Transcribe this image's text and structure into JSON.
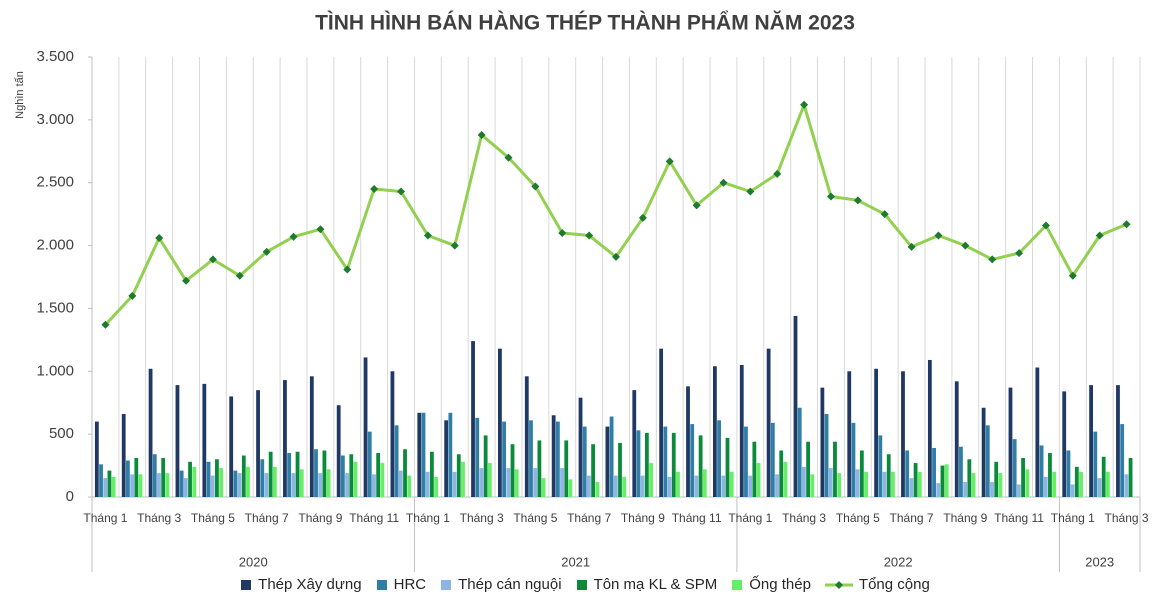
{
  "chart_data": {
    "type": "bar",
    "title": "TÌNH HÌNH BÁN HÀNG THÉP THÀNH PHẨM NĂM 2023",
    "y_label": "Nghìn tấn",
    "groups": [
      {
        "label": "2020",
        "categories": [
          "Tháng 1",
          null,
          "Tháng 3",
          null,
          "Tháng 5",
          null,
          "Tháng 7",
          null,
          "Tháng 9",
          null,
          "Tháng 11",
          null
        ]
      },
      {
        "label": "2021",
        "categories": [
          "Tháng 1",
          null,
          "Tháng 3",
          null,
          "Tháng 5",
          null,
          "Tháng 7",
          null,
          "Tháng 9",
          null,
          "Tháng 11",
          null
        ]
      },
      {
        "label": "2022",
        "categories": [
          "Tháng 1",
          null,
          "Tháng 3",
          null,
          "Tháng 5",
          null,
          "Tháng 7",
          null,
          "Tháng 9",
          null,
          "Tháng 11",
          null
        ]
      },
      {
        "label": "2023",
        "categories": [
          "Tháng 1",
          null,
          "Tháng 3"
        ]
      }
    ],
    "series": [
      {
        "name": "Thép Xây dựng",
        "color": "#1f3864",
        "values": [
          600,
          660,
          1020,
          890,
          900,
          800,
          850,
          930,
          960,
          730,
          1110,
          1000,
          670,
          610,
          1240,
          1180,
          960,
          650,
          790,
          560,
          850,
          1180,
          880,
          1040,
          1050,
          1180,
          1440,
          870,
          1000,
          1020,
          1000,
          1090,
          920,
          710,
          870,
          1030,
          840,
          890,
          890
        ]
      },
      {
        "name": "HRC",
        "color": "#2e7ea6",
        "values": [
          260,
          290,
          340,
          210,
          280,
          210,
          300,
          350,
          380,
          330,
          520,
          570,
          670,
          670,
          630,
          600,
          610,
          600,
          560,
          640,
          530,
          560,
          580,
          610,
          560,
          590,
          710,
          660,
          590,
          490,
          370,
          390,
          400,
          570,
          460,
          410,
          370,
          520,
          580
        ]
      },
      {
        "name": "Thép cán nguội",
        "color": "#8eb4e3",
        "values": [
          150,
          180,
          190,
          150,
          170,
          190,
          190,
          190,
          190,
          190,
          180,
          210,
          200,
          200,
          230,
          230,
          230,
          230,
          170,
          170,
          170,
          160,
          170,
          170,
          170,
          180,
          240,
          230,
          220,
          200,
          150,
          110,
          120,
          120,
          100,
          160,
          100,
          150,
          180
        ]
      },
      {
        "name": "Tôn mạ KL & SPM",
        "color": "#0a8a3a",
        "values": [
          210,
          310,
          310,
          280,
          300,
          330,
          360,
          360,
          370,
          340,
          350,
          380,
          360,
          340,
          490,
          420,
          450,
          450,
          420,
          430,
          510,
          510,
          490,
          470,
          440,
          370,
          440,
          440,
          370,
          340,
          270,
          250,
          300,
          280,
          310,
          350,
          240,
          320,
          310
        ]
      },
      {
        "name": "Ống thép",
        "color": "#66ee66",
        "values": [
          160,
          180,
          190,
          240,
          230,
          240,
          240,
          220,
          220,
          280,
          270,
          170,
          160,
          280,
          270,
          220,
          150,
          140,
          120,
          160,
          270,
          200,
          220,
          200,
          270,
          280,
          180,
          190,
          200,
          200,
          200,
          260,
          190,
          190,
          220,
          200,
          200,
          200,
          null
        ]
      },
      {
        "name": "Tổng cộng",
        "type": "line",
        "color": "#92d050",
        "marker_color": "#1e7a2e",
        "values": [
          1370,
          1600,
          2060,
          1720,
          1890,
          1760,
          1950,
          2070,
          2130,
          1810,
          2450,
          2430,
          2080,
          2000,
          2880,
          2700,
          2470,
          2100,
          2080,
          1910,
          2220,
          2670,
          2320,
          2500,
          2430,
          2570,
          3120,
          2390,
          2360,
          2250,
          1990,
          2080,
          2000,
          1890,
          1940,
          2160,
          1760,
          2080,
          2170
        ]
      }
    ],
    "ylim": [
      0,
      3500
    ],
    "yticks": [
      0,
      {
        "value": 500,
        "label": "500"
      },
      {
        "value": 1000,
        "label": "1.000"
      },
      {
        "value": 1500,
        "label": "1.500"
      },
      {
        "value": 2000,
        "label": "2.000"
      },
      {
        "value": 2500,
        "label": "2.500"
      },
      {
        "value": 3000,
        "label": "3.000"
      },
      {
        "value": 3500,
        "label": "3.500"
      }
    ],
    "legend": "bottom"
  }
}
